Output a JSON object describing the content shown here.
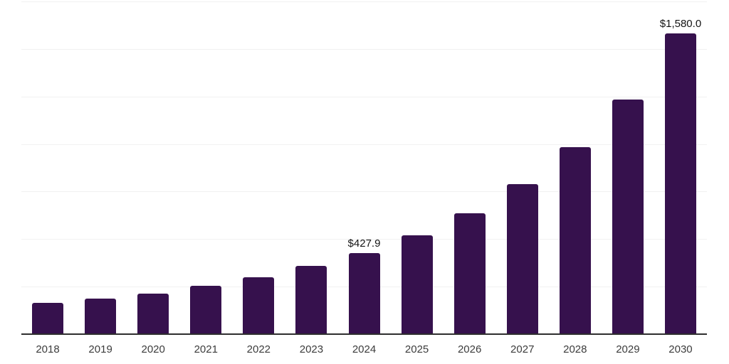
{
  "chart_data": {
    "type": "bar",
    "categories": [
      "2018",
      "2019",
      "2020",
      "2021",
      "2022",
      "2023",
      "2024",
      "2025",
      "2026",
      "2027",
      "2028",
      "2029",
      "2030"
    ],
    "values": [
      163,
      187,
      215,
      256,
      299,
      359,
      427.9,
      520,
      636,
      789,
      983,
      1234,
      1580
    ],
    "data_labels": {
      "2024": "$427.9",
      "2030": "$1,580.0"
    },
    "title": "",
    "xlabel": "",
    "ylabel": "",
    "ylim": [
      0,
      1750
    ],
    "gridline_step": 250,
    "grid": true,
    "legend": false,
    "y_tick_labels_visible": false,
    "colors": {
      "bar": "#36114d",
      "gridline": "#f1f1f1",
      "axis_line": "#2e2e2e",
      "x_label_text": "#3c3c3c",
      "data_label_text": "#141414",
      "background": "#ffffff"
    }
  }
}
